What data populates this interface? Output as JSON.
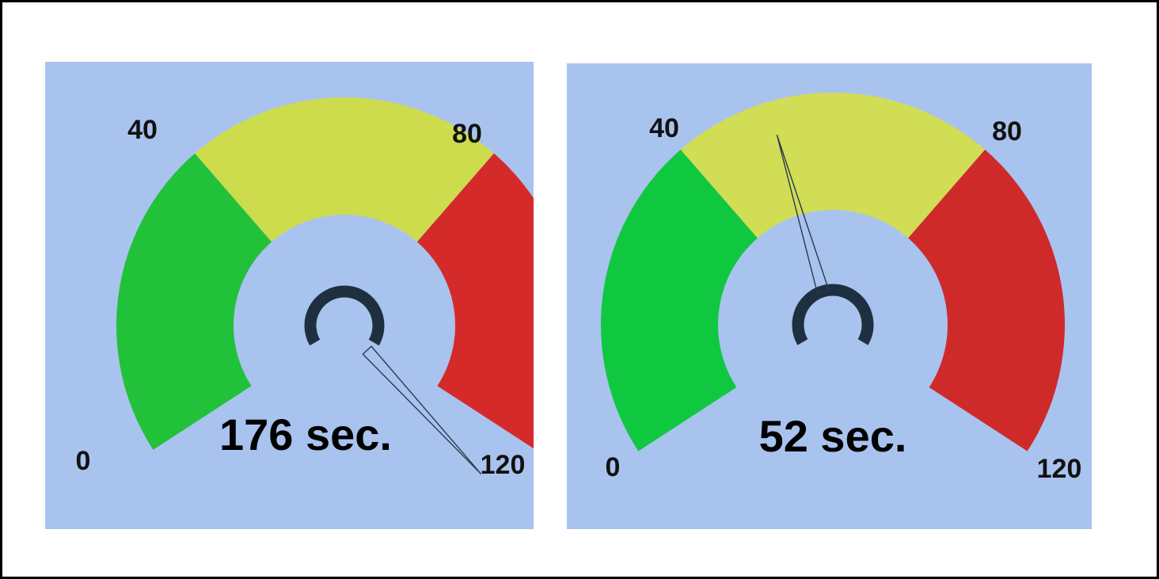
{
  "chart_data": [
    {
      "type": "gauge",
      "min": 0,
      "max": 120,
      "ticks": [
        "0",
        "40",
        "80",
        "120"
      ],
      "bands": [
        {
          "from": 0,
          "to": 40,
          "color": "#22c13a"
        },
        {
          "from": 40,
          "to": 80,
          "color": "#cddc4c"
        },
        {
          "from": 80,
          "to": 120,
          "color": "#d52a2a"
        }
      ],
      "value": 176,
      "readout": "176 sec."
    },
    {
      "type": "gauge",
      "min": 0,
      "max": 120,
      "ticks": [
        "0",
        "40",
        "80",
        "120"
      ],
      "bands": [
        {
          "from": 0,
          "to": 40,
          "color": "#10c840"
        },
        {
          "from": 40,
          "to": 80,
          "color": "#d0dd55"
        },
        {
          "from": 80,
          "to": 120,
          "color": "#cf2a2a"
        }
      ],
      "value": 52,
      "readout": "52 sec."
    }
  ],
  "colors": {
    "background": "#a9c3ef",
    "hub": "#1e3040",
    "needle": "#2a3a4a"
  }
}
